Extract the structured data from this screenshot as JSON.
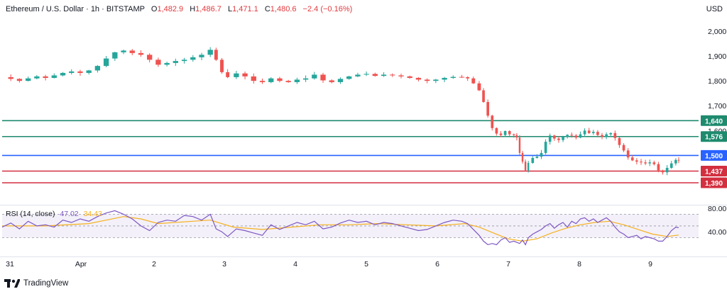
{
  "header": {
    "title": "Ethereum / U.S. Dollar · 1h · BITSTAMP",
    "o_label": "O",
    "o_value": "1,482.9",
    "h_label": "H",
    "h_value": "1,486.7",
    "l_label": "L",
    "l_value": "1,471.1",
    "c_label": "C",
    "c_value": "1,480.6",
    "change": "−2.4 (−0.16%)"
  },
  "currency": "USD",
  "brand": {
    "name": "TradingView"
  },
  "colors": {
    "up": "#26a69a",
    "down": "#ef5350",
    "green_line": "#1e8a6e",
    "blue_line": "#2962ff",
    "red_line": "#d32f3f",
    "rsi": "#7e57c2",
    "rsi_ma": "#f5b11e"
  },
  "rsi_legend": {
    "label": "RSI (14, close)",
    "value": "47.02",
    "ma_value": "34.43"
  },
  "chart_data": [
    {
      "type": "candlestick",
      "y_ticks": [
        "2,000",
        "1,900",
        "1,800",
        "1,700",
        "1,600",
        "1,500"
      ],
      "ylim": [
        1375,
        2030
      ],
      "x_ticks": [
        "31",
        "Apr",
        "2",
        "3",
        "4",
        "5",
        "6",
        "7",
        "8",
        "9"
      ],
      "x": [
        "31",
        "Apr",
        "2",
        "3",
        "4",
        "5",
        "6",
        "7",
        "8",
        "9"
      ],
      "price_line": "1,480.6",
      "levels": [
        {
          "value": 1640,
          "label": "1,640",
          "color": "#1e8a6e"
        },
        {
          "value": 1576,
          "label": "1,576",
          "color": "#1e8a6e"
        },
        {
          "value": 1500,
          "label": "1,500",
          "color": "#2962ff"
        },
        {
          "value": 1437,
          "label": "1,437",
          "color": "#d32f3f"
        },
        {
          "value": 1390,
          "label": "1,390",
          "color": "#d32f3f"
        }
      ],
      "close_path": [
        [
          0,
          1815
        ],
        [
          6,
          1808
        ],
        [
          12,
          1800
        ],
        [
          18,
          1810
        ],
        [
          24,
          1818
        ],
        [
          30,
          1812
        ],
        [
          36,
          1822
        ],
        [
          42,
          1832
        ],
        [
          48,
          1838
        ],
        [
          54,
          1832
        ],
        [
          60,
          1842
        ],
        [
          66,
          1860
        ],
        [
          72,
          1890
        ],
        [
          78,
          1915
        ],
        [
          84,
          1922
        ],
        [
          90,
          1912
        ],
        [
          96,
          1905
        ],
        [
          102,
          1885
        ],
        [
          108,
          1865
        ],
        [
          114,
          1872
        ],
        [
          120,
          1880
        ],
        [
          126,
          1885
        ],
        [
          132,
          1895
        ],
        [
          138,
          1905
        ],
        [
          144,
          1925
        ],
        [
          148,
          1885
        ],
        [
          152,
          1835
        ],
        [
          156,
          1815
        ],
        [
          162,
          1830
        ],
        [
          168,
          1818
        ],
        [
          174,
          1800
        ],
        [
          180,
          1795
        ],
        [
          186,
          1810
        ],
        [
          192,
          1800
        ],
        [
          198,
          1795
        ],
        [
          204,
          1805
        ],
        [
          210,
          1810
        ],
        [
          216,
          1825
        ],
        [
          222,
          1802
        ],
        [
          228,
          1795
        ],
        [
          234,
          1808
        ],
        [
          240,
          1818
        ],
        [
          246,
          1825
        ],
        [
          252,
          1828
        ],
        [
          258,
          1820
        ],
        [
          264,
          1825
        ],
        [
          270,
          1822
        ],
        [
          276,
          1818
        ],
        [
          282,
          1812
        ],
        [
          288,
          1805
        ],
        [
          294,
          1800
        ],
        [
          300,
          1805
        ],
        [
          306,
          1812
        ],
        [
          312,
          1816
        ],
        [
          318,
          1815
        ],
        [
          322,
          1810
        ],
        [
          326,
          1790
        ],
        [
          330,
          1762
        ],
        [
          333,
          1715
        ],
        [
          336,
          1660
        ],
        [
          339,
          1610
        ],
        [
          342,
          1588
        ],
        [
          345,
          1582
        ],
        [
          348,
          1598
        ],
        [
          351,
          1585
        ],
        [
          354,
          1582
        ],
        [
          356,
          1572
        ],
        [
          358,
          1510
        ],
        [
          360,
          1475
        ],
        [
          362,
          1440
        ],
        [
          364,
          1470
        ],
        [
          367,
          1490
        ],
        [
          370,
          1495
        ],
        [
          373,
          1510
        ],
        [
          376,
          1555
        ],
        [
          379,
          1580
        ],
        [
          382,
          1568
        ],
        [
          385,
          1562
        ],
        [
          388,
          1575
        ],
        [
          391,
          1583
        ],
        [
          394,
          1580
        ],
        [
          397,
          1572
        ],
        [
          400,
          1585
        ],
        [
          403,
          1600
        ],
        [
          406,
          1590
        ],
        [
          409,
          1595
        ],
        [
          412,
          1582
        ],
        [
          415,
          1575
        ],
        [
          418,
          1585
        ],
        [
          421,
          1590
        ],
        [
          424,
          1570
        ],
        [
          427,
          1542
        ],
        [
          430,
          1520
        ],
        [
          433,
          1492
        ],
        [
          436,
          1480
        ],
        [
          439,
          1475
        ],
        [
          442,
          1472
        ],
        [
          445,
          1468
        ],
        [
          448,
          1472
        ],
        [
          451,
          1465
        ],
        [
          454,
          1440
        ],
        [
          457,
          1432
        ],
        [
          460,
          1450
        ],
        [
          463,
          1468
        ],
        [
          466,
          1482
        ],
        [
          468,
          1480.6
        ]
      ]
    },
    {
      "type": "line",
      "name_label": "RSI (14, close)",
      "y_ticks": [
        "80.00",
        "40.00"
      ],
      "ylim": [
        10,
        85
      ],
      "bands": [
        70,
        50,
        30
      ],
      "rsi_path": [
        [
          0,
          48
        ],
        [
          6,
          55
        ],
        [
          12,
          45
        ],
        [
          18,
          58
        ],
        [
          24,
          50
        ],
        [
          30,
          52
        ],
        [
          36,
          48
        ],
        [
          42,
          60
        ],
        [
          48,
          56
        ],
        [
          54,
          62
        ],
        [
          60,
          58
        ],
        [
          66,
          66
        ],
        [
          72,
          72
        ],
        [
          78,
          76
        ],
        [
          84,
          70
        ],
        [
          90,
          62
        ],
        [
          96,
          50
        ],
        [
          102,
          42
        ],
        [
          108,
          56
        ],
        [
          114,
          60
        ],
        [
          120,
          58
        ],
        [
          126,
          68
        ],
        [
          132,
          66
        ],
        [
          138,
          60
        ],
        [
          144,
          70
        ],
        [
          148,
          45
        ],
        [
          152,
          40
        ],
        [
          156,
          32
        ],
        [
          162,
          45
        ],
        [
          168,
          42
        ],
        [
          174,
          38
        ],
        [
          180,
          34
        ],
        [
          186,
          52
        ],
        [
          192,
          44
        ],
        [
          198,
          50
        ],
        [
          204,
          56
        ],
        [
          210,
          52
        ],
        [
          216,
          58
        ],
        [
          222,
          45
        ],
        [
          228,
          48
        ],
        [
          234,
          55
        ],
        [
          240,
          60
        ],
        [
          246,
          56
        ],
        [
          252,
          58
        ],
        [
          258,
          52
        ],
        [
          264,
          56
        ],
        [
          270,
          54
        ],
        [
          276,
          50
        ],
        [
          282,
          46
        ],
        [
          288,
          42
        ],
        [
          294,
          44
        ],
        [
          300,
          50
        ],
        [
          306,
          56
        ],
        [
          312,
          60
        ],
        [
          318,
          58
        ],
        [
          322,
          54
        ],
        [
          326,
          44
        ],
        [
          330,
          34
        ],
        [
          333,
          24
        ],
        [
          336,
          18
        ],
        [
          339,
          20
        ],
        [
          342,
          18
        ],
        [
          345,
          26
        ],
        [
          348,
          30
        ],
        [
          351,
          22
        ],
        [
          354,
          24
        ],
        [
          356,
          22
        ],
        [
          358,
          20
        ],
        [
          360,
          26
        ],
        [
          362,
          18
        ],
        [
          364,
          30
        ],
        [
          367,
          36
        ],
        [
          370,
          40
        ],
        [
          373,
          44
        ],
        [
          376,
          50
        ],
        [
          379,
          54
        ],
        [
          382,
          46
        ],
        [
          385,
          52
        ],
        [
          388,
          56
        ],
        [
          391,
          48
        ],
        [
          394,
          58
        ],
        [
          397,
          54
        ],
        [
          400,
          62
        ],
        [
          403,
          64
        ],
        [
          406,
          58
        ],
        [
          409,
          62
        ],
        [
          412,
          56
        ],
        [
          415,
          60
        ],
        [
          418,
          64
        ],
        [
          421,
          58
        ],
        [
          424,
          48
        ],
        [
          427,
          40
        ],
        [
          430,
          36
        ],
        [
          433,
          30
        ],
        [
          436,
          32
        ],
        [
          439,
          34
        ],
        [
          442,
          28
        ],
        [
          445,
          32
        ],
        [
          448,
          30
        ],
        [
          451,
          28
        ],
        [
          454,
          24
        ],
        [
          457,
          24
        ],
        [
          460,
          32
        ],
        [
          463,
          42
        ],
        [
          466,
          48
        ],
        [
          468,
          47.02
        ]
      ],
      "ma_path": [
        [
          0,
          50
        ],
        [
          30,
          50
        ],
        [
          60,
          54
        ],
        [
          72,
          60
        ],
        [
          84,
          66
        ],
        [
          96,
          62
        ],
        [
          108,
          54
        ],
        [
          132,
          58
        ],
        [
          144,
          60
        ],
        [
          160,
          48
        ],
        [
          180,
          44
        ],
        [
          200,
          48
        ],
        [
          220,
          52
        ],
        [
          240,
          52
        ],
        [
          260,
          54
        ],
        [
          280,
          52
        ],
        [
          300,
          50
        ],
        [
          320,
          54
        ],
        [
          330,
          48
        ],
        [
          340,
          38
        ],
        [
          350,
          28
        ],
        [
          360,
          24
        ],
        [
          370,
          28
        ],
        [
          380,
          38
        ],
        [
          390,
          46
        ],
        [
          400,
          52
        ],
        [
          410,
          56
        ],
        [
          420,
          58
        ],
        [
          430,
          52
        ],
        [
          440,
          44
        ],
        [
          450,
          36
        ],
        [
          460,
          32
        ],
        [
          468,
          34.43
        ]
      ]
    }
  ]
}
